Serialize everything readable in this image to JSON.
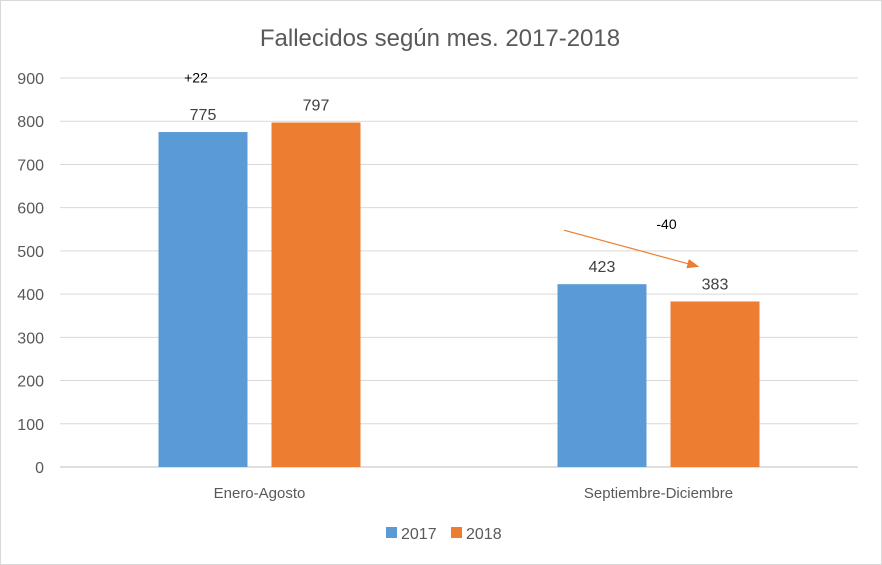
{
  "chart_data": {
    "type": "bar",
    "title": "Fallecidos  según mes. 2017-2018",
    "categories": [
      "Enero-Agosto",
      "Septiembre-Diciembre"
    ],
    "series": [
      {
        "name": "2017",
        "values": [
          775,
          423
        ],
        "color": "#5B9BD5"
      },
      {
        "name": "2018",
        "values": [
          797,
          383
        ],
        "color": "#ED7D31"
      }
    ],
    "ylim": [
      0,
      900
    ],
    "yticks": [
      0,
      100,
      200,
      300,
      400,
      500,
      600,
      700,
      800,
      900
    ],
    "grid": true,
    "legend": "bottom",
    "annotations": [
      {
        "text": "+22",
        "category": "Enero-Agosto"
      },
      {
        "text": "-40",
        "category": "Septiembre-Diciembre",
        "arrow": true,
        "arrow_color": "#ED7D31"
      }
    ]
  }
}
